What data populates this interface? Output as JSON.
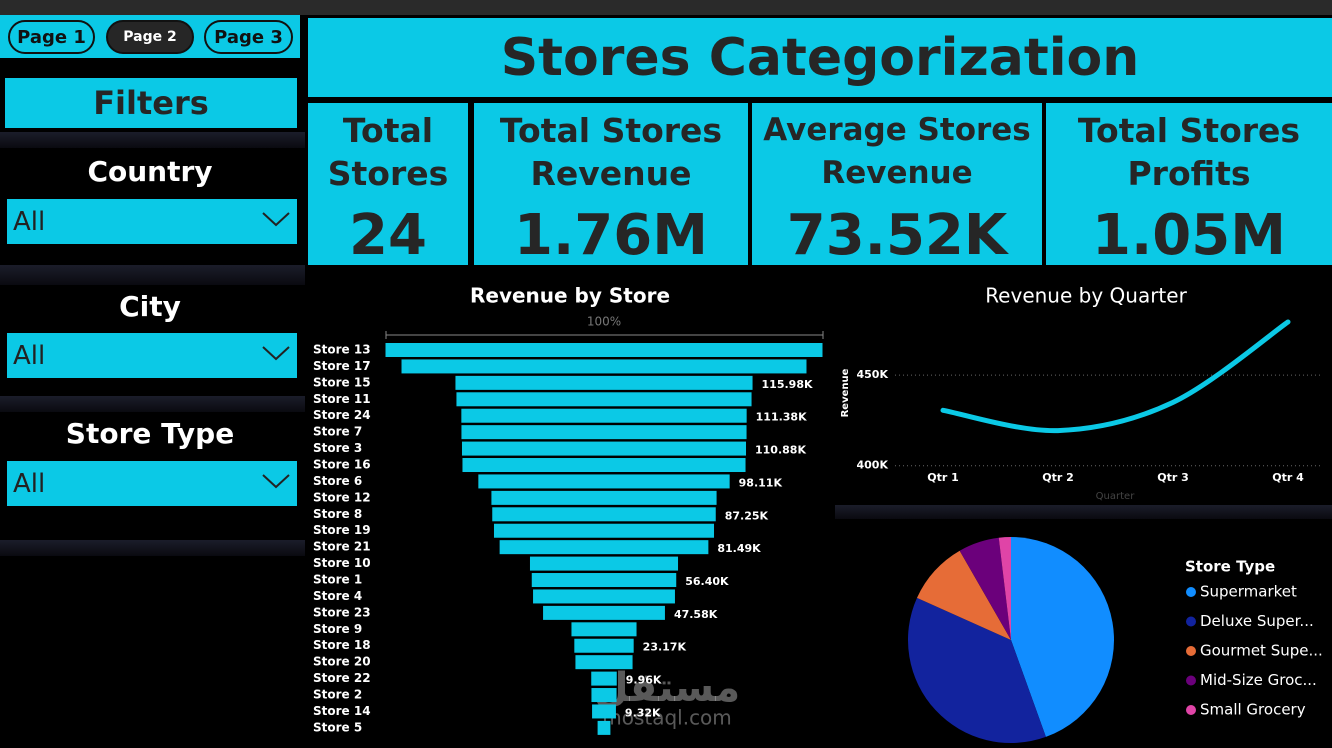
{
  "nav": {
    "pages": [
      "Page 1",
      "Page 2",
      "Page 3"
    ]
  },
  "header": {
    "title": "Stores Categorization"
  },
  "filters": {
    "title": "Filters",
    "slicers": [
      {
        "label": "Country",
        "value": "All"
      },
      {
        "label": "City",
        "value": "All"
      },
      {
        "label": "Store Type",
        "value": "All"
      }
    ]
  },
  "kpis": [
    {
      "label": "Total Stores",
      "value": "24"
    },
    {
      "label": "Total Stores Revenue",
      "value": "1.76M"
    },
    {
      "label": "Average Stores Revenue",
      "value": "73.52K"
    },
    {
      "label": "Total Stores Profits",
      "value": "1.05M"
    }
  ],
  "watermark": {
    "logo": "مستقل",
    "text": "mostaql.com"
  },
  "chart_data": [
    {
      "type": "funnel",
      "title": "Revenue by Store",
      "scale_label": "100%",
      "color": "#0bc9e6",
      "categories": [
        "Store 13",
        "Store 17",
        "Store 15",
        "Store 11",
        "Store 24",
        "Store 7",
        "Store 3",
        "Store 16",
        "Store 6",
        "Store 12",
        "Store 8",
        "Store 19",
        "Store 21",
        "Store 10",
        "Store 1",
        "Store 4",
        "Store 23",
        "Store 9",
        "Store 18",
        "Store 20",
        "Store 22",
        "Store 2",
        "Store 14",
        "Store 5"
      ],
      "values": [
        170.6,
        158.1,
        115.98,
        115.2,
        111.38,
        111.3,
        110.88,
        110.5,
        98.11,
        87.9,
        87.25,
        85.9,
        81.49,
        57.8,
        56.4,
        55.4,
        47.58,
        25.4,
        23.17,
        22.3,
        9.96,
        9.8,
        9.32,
        5
      ],
      "value_labels": [
        null,
        null,
        "115.98K",
        null,
        "111.38K",
        null,
        "110.88K",
        null,
        "98.11K",
        null,
        "87.25K",
        null,
        "81.49K",
        null,
        "56.40K",
        null,
        "47.58K",
        null,
        "23.17K",
        null,
        "9.96K",
        null,
        "9.32K",
        null
      ]
    },
    {
      "type": "line",
      "title": "Revenue by Quarter",
      "x_label": "Quarter",
      "y_label": "Revenue",
      "color": "#0bc9e6",
      "categories": [
        "Qtr 1",
        "Qtr 2",
        "Qtr 3",
        "Qtr 4"
      ],
      "values": [
        430600,
        419400,
        435000,
        479400
      ],
      "ylim": [
        391000,
        486000
      ],
      "yticks": [
        {
          "value": 400000,
          "label": "400K"
        },
        {
          "value": 450000,
          "label": "450K"
        }
      ],
      "grid": true
    },
    {
      "type": "pie",
      "legend_title": "Store Type",
      "categories": [
        "Supermarket",
        "Deluxe Super...",
        "Gourmet Supe...",
        "Mid-Size Groc...",
        "Small Grocery"
      ],
      "values": [
        44.5,
        37.2,
        10,
        6.4,
        1.9
      ],
      "colors": [
        "#118dff",
        "#12239e",
        "#e66c37",
        "#6b007b",
        "#e044a7"
      ]
    }
  ]
}
